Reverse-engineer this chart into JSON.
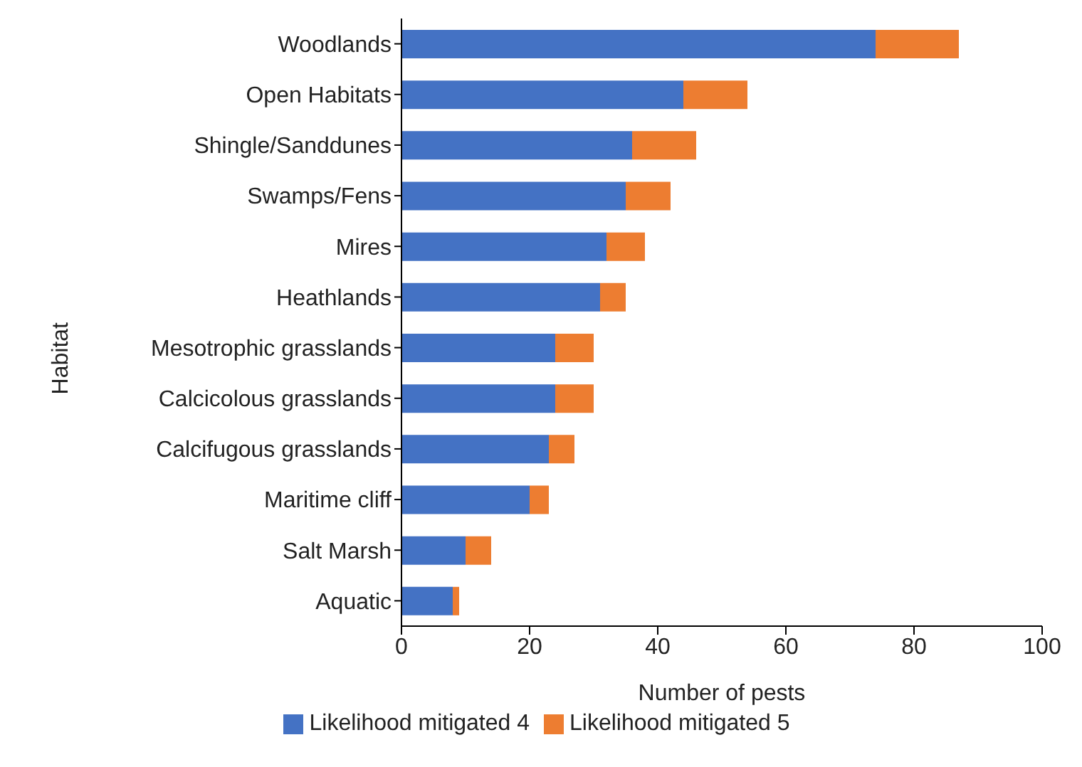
{
  "chart_data": {
    "type": "bar",
    "orientation": "horizontal",
    "stacked": true,
    "xlabel": "Number of pests",
    "ylabel": "Habitat",
    "categories": [
      "Woodlands",
      "Open Habitats",
      "Shingle/Sanddunes",
      "Swamps/Fens",
      "Mires",
      "Heathlands",
      "Mesotrophic grasslands",
      "Calcicolous grasslands",
      "Calcifugous grasslands",
      "Maritime cliff",
      "Salt Marsh",
      "Aquatic"
    ],
    "series": [
      {
        "name": "Likelihood mitigated 4",
        "color": "#4472c4",
        "values": [
          74,
          44,
          36,
          35,
          32,
          31,
          24,
          24,
          23,
          20,
          10,
          8
        ]
      },
      {
        "name": "Likelihood mitigated 5",
        "color": "#ed7d31",
        "values": [
          13,
          10,
          10,
          7,
          6,
          4,
          6,
          6,
          4,
          3,
          4,
          1
        ]
      }
    ],
    "xlim": [
      0,
      100
    ],
    "xticks": [
      0,
      20,
      40,
      60,
      80,
      100
    ],
    "grid": false,
    "legend": "bottom"
  }
}
